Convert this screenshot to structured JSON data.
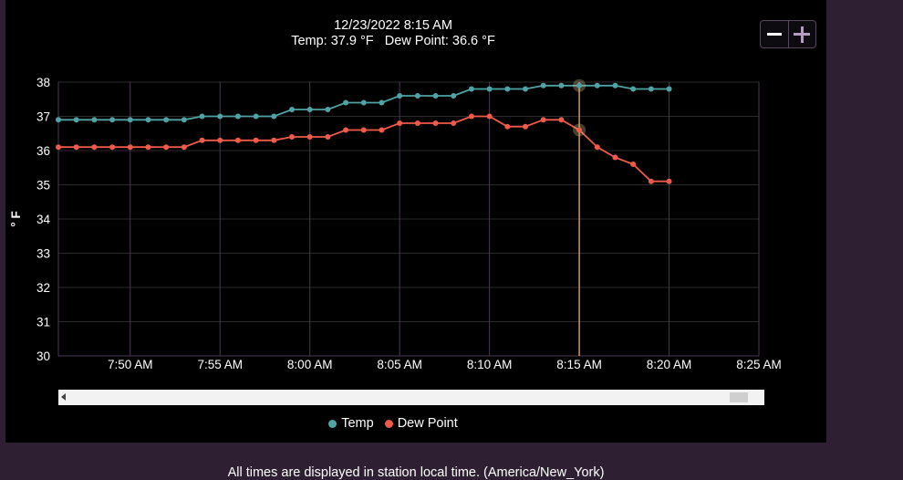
{
  "tooltip": {
    "datetime": "12/23/2022 8:15 AM",
    "temp_label": "Temp:",
    "temp_value": "37.9 °F",
    "dew_label": "Dew Point:",
    "dew_value": "36.6 °F"
  },
  "footer_text": "All times are displayed in station local time. (America/New_York)",
  "colors": {
    "panel": "#000000",
    "page": "#2e1f33",
    "temp": "#4fa3a5",
    "dew": "#ef5a4a",
    "crosshair": "#f2a86b",
    "vgrid": "#4b3654",
    "hgrid": "#2a2a2a"
  },
  "chart_data": {
    "type": "line",
    "ylabel": "° F",
    "ylim": [
      30,
      38
    ],
    "yticks": [
      "30",
      "31",
      "32",
      "33",
      "34",
      "35",
      "36",
      "37",
      "38"
    ],
    "xlim": [
      "7:46 AM",
      "8:25 AM"
    ],
    "xticks": [
      "7:50 AM",
      "7:55 AM",
      "8:00 AM",
      "8:05 AM",
      "8:10 AM",
      "8:15 AM",
      "8:20 AM",
      "8:25 AM"
    ],
    "x": [
      "7:46 AM",
      "7:47 AM",
      "7:48 AM",
      "7:49 AM",
      "7:50 AM",
      "7:51 AM",
      "7:52 AM",
      "7:53 AM",
      "7:54 AM",
      "7:55 AM",
      "7:56 AM",
      "7:57 AM",
      "7:58 AM",
      "7:59 AM",
      "8:00 AM",
      "8:01 AM",
      "8:02 AM",
      "8:03 AM",
      "8:04 AM",
      "8:05 AM",
      "8:06 AM",
      "8:07 AM",
      "8:08 AM",
      "8:09 AM",
      "8:10 AM",
      "8:11 AM",
      "8:12 AM",
      "8:13 AM",
      "8:14 AM",
      "8:15 AM",
      "8:16 AM",
      "8:17 AM",
      "8:18 AM",
      "8:19 AM",
      "8:20 AM"
    ],
    "series": [
      {
        "name": "Temp",
        "values": [
          36.9,
          36.9,
          36.9,
          36.9,
          36.9,
          36.9,
          36.9,
          36.9,
          37.0,
          37.0,
          37.0,
          37.0,
          37.0,
          37.2,
          37.2,
          37.2,
          37.4,
          37.4,
          37.4,
          37.6,
          37.6,
          37.6,
          37.6,
          37.8,
          37.8,
          37.8,
          37.8,
          37.9,
          37.9,
          37.9,
          37.9,
          37.9,
          37.8,
          37.8,
          37.8
        ]
      },
      {
        "name": "Dew Point",
        "values": [
          36.1,
          36.1,
          36.1,
          36.1,
          36.1,
          36.1,
          36.1,
          36.1,
          36.3,
          36.3,
          36.3,
          36.3,
          36.3,
          36.4,
          36.4,
          36.4,
          36.6,
          36.6,
          36.6,
          36.8,
          36.8,
          36.8,
          36.8,
          37.0,
          37.0,
          36.7,
          36.7,
          36.9,
          36.9,
          36.6,
          36.1,
          35.8,
          35.6,
          35.1,
          35.1
        ]
      }
    ],
    "highlight_x": "8:15 AM",
    "grid": true,
    "legend_position": "bottom"
  }
}
